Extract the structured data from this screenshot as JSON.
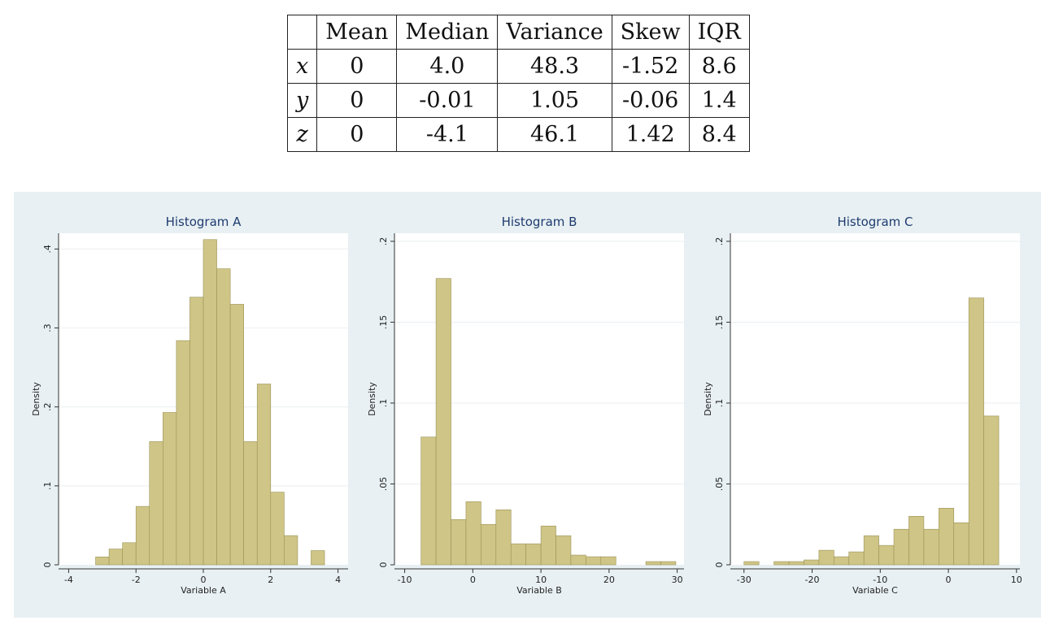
{
  "table": {
    "columns": [
      "",
      "Mean",
      "Median",
      "Variance",
      "Skew",
      "IQR"
    ],
    "rows": [
      {
        "var": "x",
        "cells": [
          "0",
          "4.0",
          "48.3",
          "-1.52",
          "8.6"
        ]
      },
      {
        "var": "y",
        "cells": [
          "0",
          "-0.01",
          "1.05",
          "-0.06",
          "1.4"
        ]
      },
      {
        "var": "z",
        "cells": [
          "0",
          "-4.1",
          "46.1",
          "1.42",
          "8.4"
        ]
      }
    ]
  },
  "colors": {
    "bar_fill": "#cfc587",
    "bar_stroke": "#9a9255",
    "title": "#1e3b6e",
    "plot_region_bg": "#e8f0f3",
    "panel_bg": "#ffffff",
    "grid": "#e9eef1"
  },
  "chart_data": [
    {
      "type": "bar",
      "title": "Histogram A",
      "xlabel": "Variable A",
      "ylabel": "Density",
      "xlim": [
        -4.3,
        4.3
      ],
      "ylim": [
        0,
        0.42
      ],
      "xticks": [
        -4,
        -2,
        0,
        2,
        4
      ],
      "xtick_labels": [
        "-4",
        "-2",
        "0",
        "2",
        "4"
      ],
      "yticks": [
        0,
        0.1,
        0.2,
        0.3,
        0.4
      ],
      "ytick_labels": [
        "0",
        ".1",
        ".2",
        ".3",
        ".4"
      ],
      "grid": true,
      "bins": [
        {
          "x0": -3.2,
          "x1": -2.8,
          "y": 0.01
        },
        {
          "x0": -2.8,
          "x1": -2.4,
          "y": 0.02
        },
        {
          "x0": -2.4,
          "x1": -2.0,
          "y": 0.028
        },
        {
          "x0": -2.0,
          "x1": -1.6,
          "y": 0.074
        },
        {
          "x0": -1.6,
          "x1": -1.2,
          "y": 0.156
        },
        {
          "x0": -1.2,
          "x1": -0.8,
          "y": 0.193
        },
        {
          "x0": -0.8,
          "x1": -0.4,
          "y": 0.284
        },
        {
          "x0": -0.4,
          "x1": 0.0,
          "y": 0.339
        },
        {
          "x0": 0.0,
          "x1": 0.4,
          "y": 0.412
        },
        {
          "x0": 0.4,
          "x1": 0.8,
          "y": 0.375
        },
        {
          "x0": 0.8,
          "x1": 1.2,
          "y": 0.33
        },
        {
          "x0": 1.2,
          "x1": 1.6,
          "y": 0.156
        },
        {
          "x0": 1.6,
          "x1": 2.0,
          "y": 0.229
        },
        {
          "x0": 2.0,
          "x1": 2.4,
          "y": 0.092
        },
        {
          "x0": 2.4,
          "x1": 2.8,
          "y": 0.037
        },
        {
          "x0": 2.8,
          "x1": 3.2,
          "y": 0.0
        },
        {
          "x0": 3.2,
          "x1": 3.6,
          "y": 0.018
        }
      ]
    },
    {
      "type": "bar",
      "title": "Histogram B",
      "xlabel": "Variable B",
      "ylabel": "Density",
      "xlim": [
        -11.5,
        31
      ],
      "ylim": [
        0,
        0.205
      ],
      "xticks": [
        -10,
        0,
        10,
        20,
        30
      ],
      "xtick_labels": [
        "-10",
        "0",
        "10",
        "20",
        "30"
      ],
      "yticks": [
        0,
        0.05,
        0.1,
        0.15,
        0.2
      ],
      "ytick_labels": [
        "0",
        ".05",
        ".1",
        ".15",
        ".2"
      ],
      "grid": true,
      "bins": [
        {
          "x0": -7.6,
          "x1": -5.4,
          "y": 0.079
        },
        {
          "x0": -5.4,
          "x1": -3.2,
          "y": 0.177
        },
        {
          "x0": -3.2,
          "x1": -1.0,
          "y": 0.028
        },
        {
          "x0": -1.0,
          "x1": 1.2,
          "y": 0.039
        },
        {
          "x0": 1.2,
          "x1": 3.4,
          "y": 0.025
        },
        {
          "x0": 3.4,
          "x1": 5.6,
          "y": 0.034
        },
        {
          "x0": 5.6,
          "x1": 7.8,
          "y": 0.013
        },
        {
          "x0": 7.8,
          "x1": 10.0,
          "y": 0.013
        },
        {
          "x0": 10.0,
          "x1": 12.2,
          "y": 0.024
        },
        {
          "x0": 12.2,
          "x1": 14.4,
          "y": 0.018
        },
        {
          "x0": 14.4,
          "x1": 16.6,
          "y": 0.006
        },
        {
          "x0": 16.6,
          "x1": 18.8,
          "y": 0.005
        },
        {
          "x0": 18.8,
          "x1": 21.0,
          "y": 0.005
        },
        {
          "x0": 21.0,
          "x1": 23.2,
          "y": 0.0
        },
        {
          "x0": 23.2,
          "x1": 25.4,
          "y": 0.0
        },
        {
          "x0": 25.4,
          "x1": 27.6,
          "y": 0.002
        },
        {
          "x0": 27.6,
          "x1": 29.8,
          "y": 0.002
        }
      ]
    },
    {
      "type": "bar",
      "title": "Histogram C",
      "xlabel": "Variable C",
      "ylabel": "Density",
      "xlim": [
        -32,
        10.5
      ],
      "ylim": [
        0,
        0.205
      ],
      "xticks": [
        -30,
        -20,
        -10,
        0,
        10
      ],
      "xtick_labels": [
        "-30",
        "-20",
        "-10",
        "0",
        "10"
      ],
      "yticks": [
        0,
        0.05,
        0.1,
        0.15,
        0.2
      ],
      "ytick_labels": [
        "0",
        ".05",
        ".1",
        ".15",
        ".2"
      ],
      "grid": true,
      "bins": [
        {
          "x0": -30.0,
          "x1": -27.8,
          "y": 0.002
        },
        {
          "x0": -27.8,
          "x1": -25.6,
          "y": 0.0
        },
        {
          "x0": -25.6,
          "x1": -23.4,
          "y": 0.002
        },
        {
          "x0": -23.4,
          "x1": -21.2,
          "y": 0.002
        },
        {
          "x0": -21.2,
          "x1": -19.0,
          "y": 0.003
        },
        {
          "x0": -19.0,
          "x1": -16.8,
          "y": 0.009
        },
        {
          "x0": -16.8,
          "x1": -14.6,
          "y": 0.005
        },
        {
          "x0": -14.6,
          "x1": -12.4,
          "y": 0.008
        },
        {
          "x0": -12.4,
          "x1": -10.2,
          "y": 0.018
        },
        {
          "x0": -10.2,
          "x1": -8.0,
          "y": 0.012
        },
        {
          "x0": -8.0,
          "x1": -5.8,
          "y": 0.022
        },
        {
          "x0": -5.8,
          "x1": -3.6,
          "y": 0.03
        },
        {
          "x0": -3.6,
          "x1": -1.4,
          "y": 0.022
        },
        {
          "x0": -1.4,
          "x1": 0.8,
          "y": 0.035
        },
        {
          "x0": 0.8,
          "x1": 3.0,
          "y": 0.026
        },
        {
          "x0": 3.0,
          "x1": 5.2,
          "y": 0.165
        },
        {
          "x0": 5.2,
          "x1": 7.4,
          "y": 0.092
        }
      ]
    }
  ]
}
